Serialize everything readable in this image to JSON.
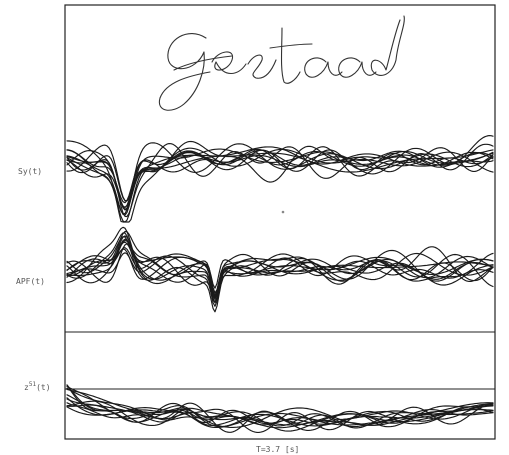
{
  "figure": {
    "signature_text": "gestaad",
    "labels": {
      "sy": "Sy(t)",
      "apf": "APF(t)",
      "z_base": "z",
      "z_sup": "51",
      "z_suffix": "(t)"
    },
    "time_axis_label": "T=3.7 [s]"
  },
  "colors": {
    "ink": "#1b1b1b",
    "frame": "#222222",
    "label": "#555555",
    "background": "#ffffff"
  }
}
